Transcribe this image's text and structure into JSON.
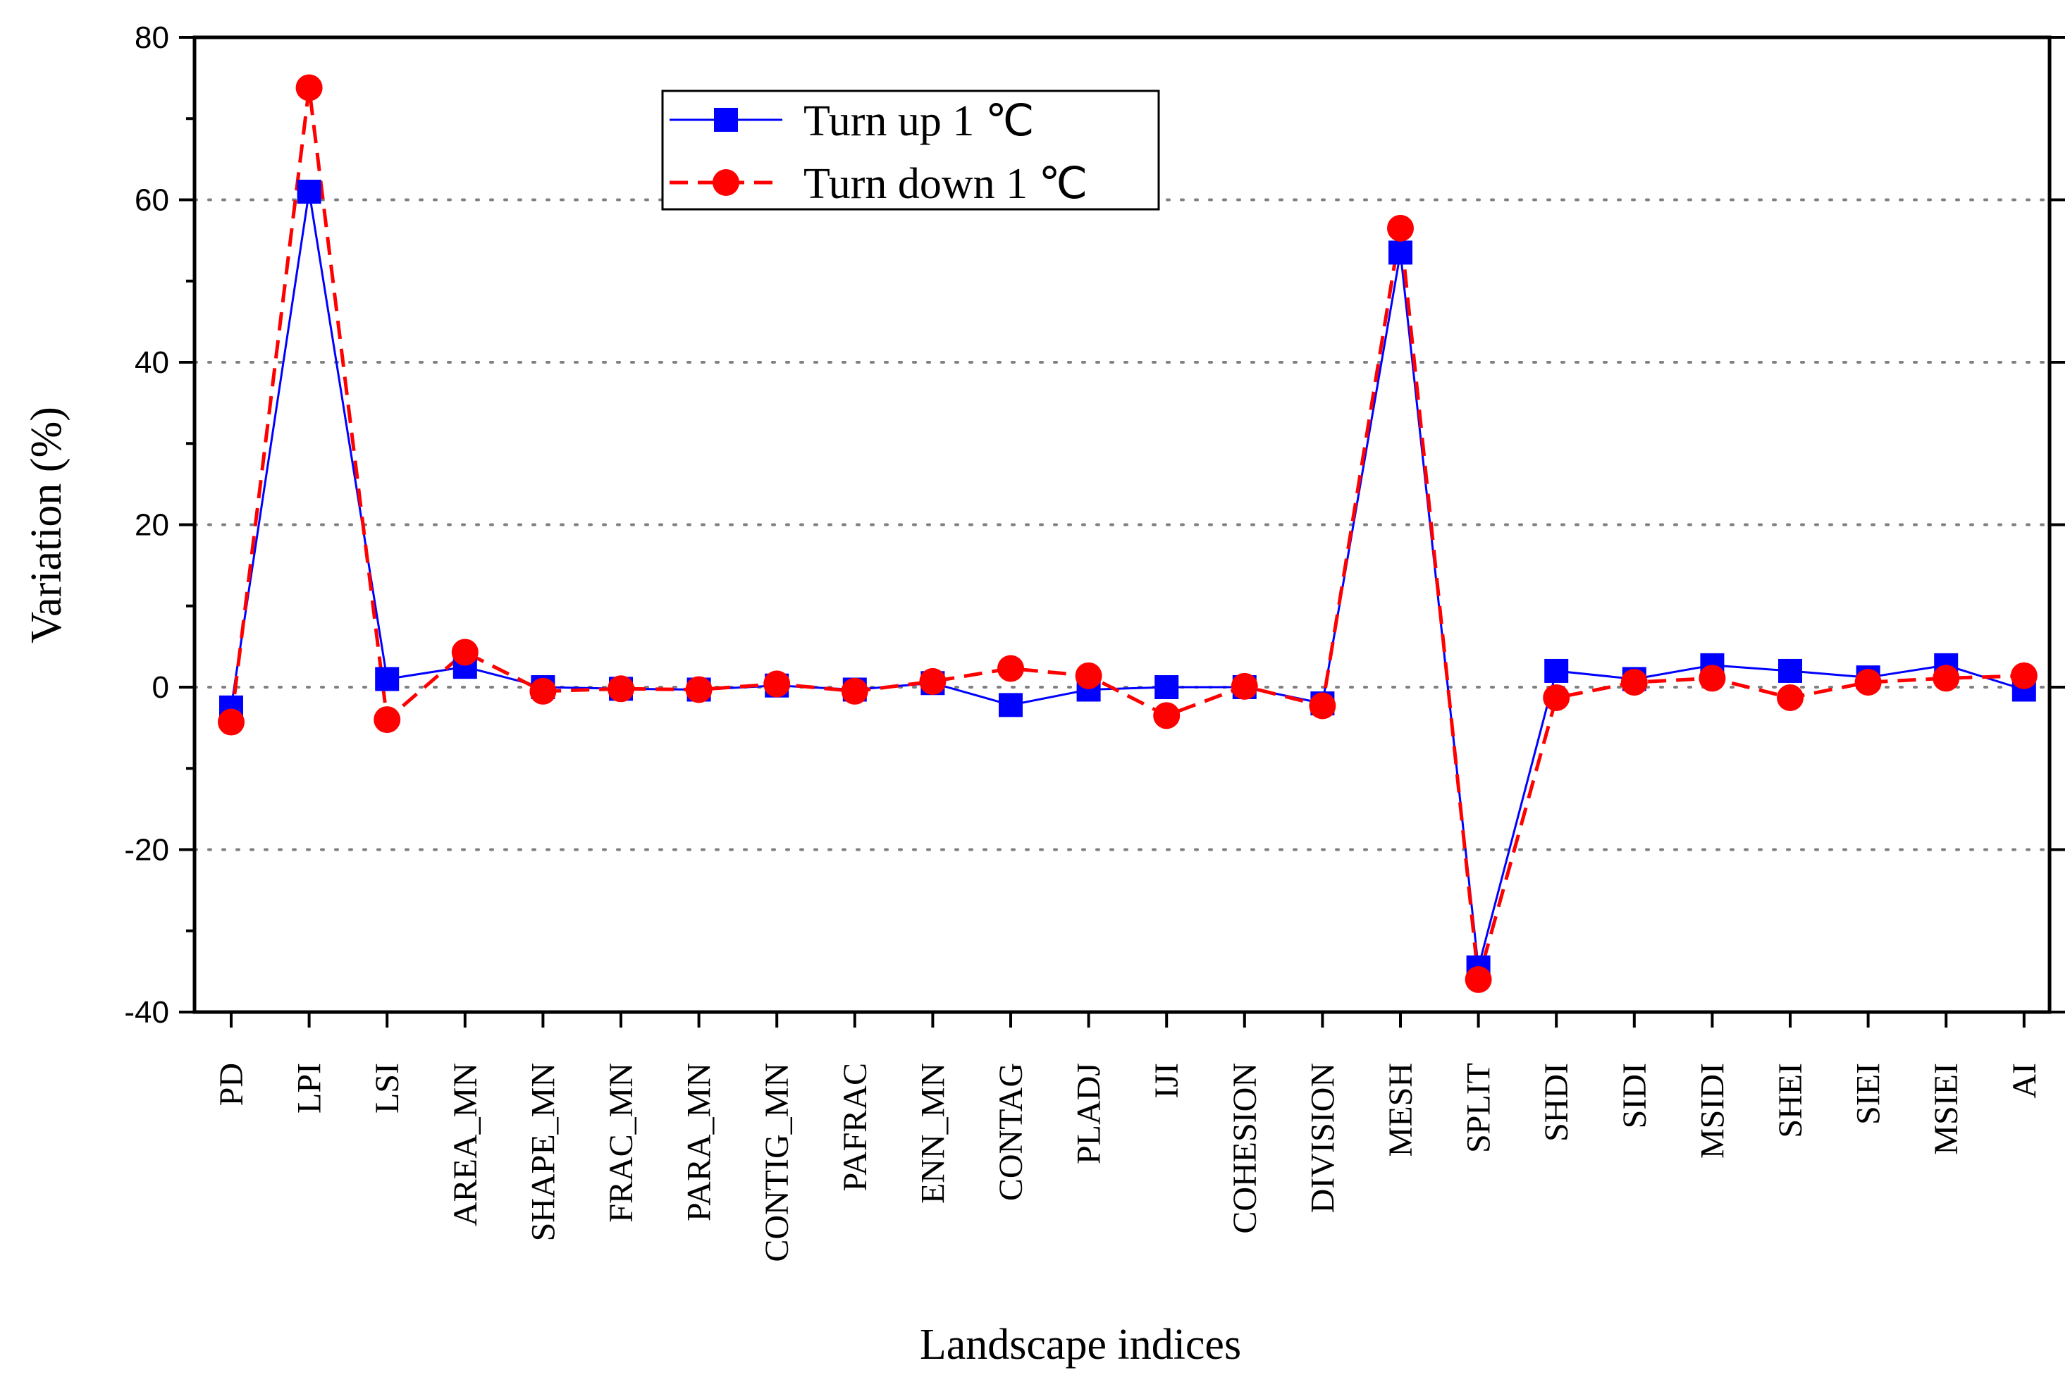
{
  "chart_data": {
    "type": "line",
    "title": "",
    "xlabel": "Landscape indices",
    "ylabel": "Variation (%)",
    "ylim": [
      -40,
      80
    ],
    "yticks": [
      -40,
      -20,
      0,
      20,
      40,
      60,
      80
    ],
    "ytick_labels": [
      "-40",
      "-20",
      "0",
      "20",
      "40",
      "60",
      "80"
    ],
    "grid": "horizontal dotted at 0, 20, 40, 60",
    "legend_position": "top-left",
    "categories": [
      "PD",
      "LPI",
      "LSI",
      "AREA_MN",
      "SHAPE_MN",
      "FRAC_MN",
      "PARA_MN",
      "CONTIG_MN",
      "PAFRAC",
      "ENN_MN",
      "CONTAG",
      "PLADJ",
      "IJI",
      "COHESION",
      "DIVISION",
      "MESH",
      "SPLIT",
      "SHDI",
      "SIDI",
      "MSIDI",
      "SHEI",
      "SIEI",
      "MSIEI",
      "AI"
    ],
    "series": [
      {
        "name": "Turn up 1 ℃",
        "color": "#0000ff",
        "line_style": "solid",
        "marker": "square",
        "values": [
          -2.5,
          61,
          1,
          2.5,
          0,
          -0.2,
          -0.3,
          0.2,
          -0.3,
          0.5,
          -2.2,
          -0.3,
          0,
          0,
          -2,
          53.5,
          -34.5,
          2,
          1,
          2.7,
          2,
          1.2,
          2.7,
          -0.3
        ]
      },
      {
        "name": "Turn down 1 ℃",
        "color": "#ff0000",
        "line_style": "dashed",
        "marker": "circle",
        "values": [
          -4.3,
          73.8,
          -4,
          4.3,
          -0.5,
          -0.2,
          -0.3,
          0.4,
          -0.5,
          0.7,
          2.3,
          1.4,
          -3.5,
          0.1,
          -2.3,
          56.5,
          -36,
          -1.3,
          0.6,
          1.1,
          -1.3,
          0.6,
          1.1,
          1.4
        ]
      }
    ]
  }
}
